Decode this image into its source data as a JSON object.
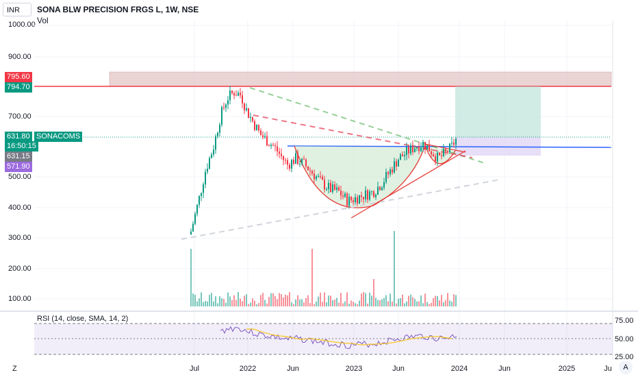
{
  "header": {
    "currency": "INR",
    "title": "SONA BLW PRECISION FRGS L, 1W, NSE",
    "volume_label": "Vol"
  },
  "price_axis": {
    "ticks": [
      "1000.00",
      "900.00",
      "700.00",
      "500.00",
      "400.00",
      "300.00",
      "200.00",
      "100.00"
    ],
    "labels": {
      "resistance_top": "795.60",
      "resistance_bottom": "794.70",
      "last_price": "631.80",
      "symbol": "SONACOMS",
      "countdown": "16:50:15",
      "open_price": "631.15",
      "target_low": "571.90"
    },
    "label_colors": {
      "resistance_top": "#f23645",
      "resistance_bottom": "#089981",
      "last_price": "#089981",
      "symbol": "#089981",
      "countdown": "#089981",
      "open_price": "#787b86",
      "target_low": "#9c6ade"
    }
  },
  "time_axis": {
    "ticks": [
      "Jul",
      "2022",
      "Jun",
      "2023",
      "Jun",
      "2024",
      "Jun",
      "2025",
      "Ju"
    ]
  },
  "rsi": {
    "title": "RSI (14, close, SMA, 14, 2)",
    "ticks": [
      "75.00",
      "50.00",
      "25.00"
    ]
  },
  "colors": {
    "up": "#089981",
    "down": "#f23645",
    "rsi_line": "#7e57c2",
    "rsi_ma": "#f7c51e",
    "rsi_band": "#7e57c2"
  },
  "controls": {
    "timezone_btn": "Z",
    "auto_scale_btn": "A"
  }
}
